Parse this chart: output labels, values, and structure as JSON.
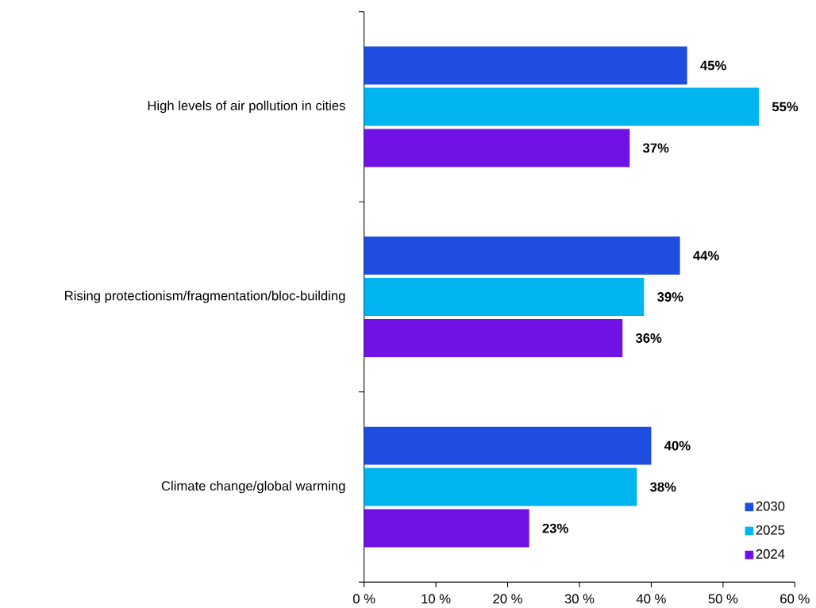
{
  "chart_data": {
    "type": "bar",
    "orientation": "horizontal",
    "categories": [
      "High levels of air pollution in cities",
      "Rising protectionism/fragmentation/bloc-building",
      "Climate change/global warming"
    ],
    "series": [
      {
        "name": "2030",
        "color": "#1f4de0",
        "values": [
          45,
          44,
          40
        ],
        "value_labels": [
          "45%",
          "44%",
          "40%"
        ]
      },
      {
        "name": "2025",
        "color": "#00b4f0",
        "values": [
          55,
          39,
          38
        ],
        "value_labels": [
          "55%",
          "39%",
          "38%"
        ]
      },
      {
        "name": "2024",
        "color": "#7012e6",
        "values": [
          37,
          36,
          23
        ],
        "value_labels": [
          "37%",
          "36%",
          "23%"
        ]
      }
    ],
    "xlim": [
      0,
      60
    ],
    "xticks": [
      {
        "value": 0,
        "label": "0 %"
      },
      {
        "value": 10,
        "label": "10 %"
      },
      {
        "value": 20,
        "label": "20 %"
      },
      {
        "value": 30,
        "label": "30 %"
      },
      {
        "value": 40,
        "label": "40 %"
      },
      {
        "value": 50,
        "label": "50 %"
      },
      {
        "value": 60,
        "label": "60 %"
      }
    ],
    "legend": "bottom right"
  }
}
